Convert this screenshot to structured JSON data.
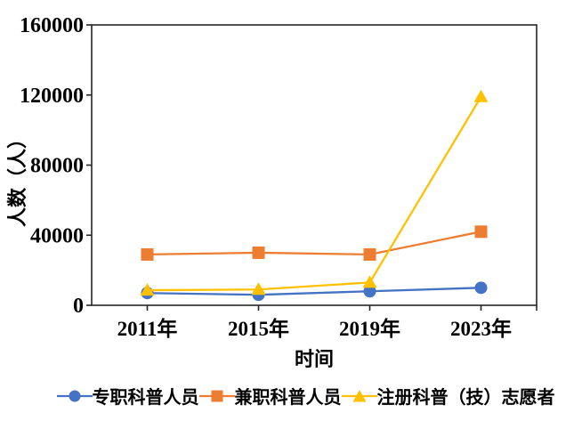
{
  "chart_data": {
    "type": "line",
    "categories": [
      "2011年",
      "2015年",
      "2019年",
      "2023年"
    ],
    "series": [
      {
        "name": "专职科普人员",
        "color": "#4472C4",
        "marker": "circle",
        "values": [
          7000,
          6000,
          8000,
          10000
        ]
      },
      {
        "name": "兼职科普人员",
        "color": "#ED7D31",
        "marker": "square",
        "values": [
          29000,
          30000,
          29000,
          42000
        ]
      },
      {
        "name": "注册科普（技）志愿者",
        "color": "#FFC000",
        "marker": "triangle",
        "values": [
          8600,
          9000,
          13000,
          119000
        ]
      }
    ],
    "xlabel": "时间",
    "ylabel": "人数（人）",
    "ylim": [
      0,
      160000
    ],
    "yticks": [
      0,
      40000,
      80000,
      120000,
      160000
    ],
    "ytick_labels": [
      "0",
      "40000",
      "80000",
      "120000",
      "160000"
    ],
    "grid": false,
    "legend_position": "bottom",
    "axis_color": "#262626",
    "text_color": "#000000"
  }
}
